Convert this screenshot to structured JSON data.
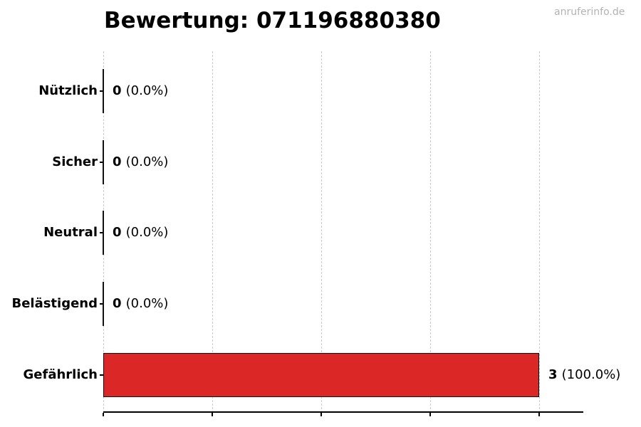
{
  "chart_data": {
    "type": "bar",
    "orientation": "horizontal",
    "title": "Bewertung: 071196880380",
    "watermark": "anruferinfo.de",
    "categories": [
      "Nützlich",
      "Sicher",
      "Neutral",
      "Belästigend",
      "Gefährlich"
    ],
    "values": [
      0,
      0,
      0,
      0,
      3
    ],
    "rows": [
      {
        "category": "Nützlich",
        "value": 0,
        "count": "0",
        "pct": "(0.0%)"
      },
      {
        "category": "Sicher",
        "value": 0,
        "count": "0",
        "pct": "(0.0%)"
      },
      {
        "category": "Neutral",
        "value": 0,
        "count": "0",
        "pct": "(0.0%)"
      },
      {
        "category": "Belästigend",
        "value": 0,
        "count": "0",
        "pct": "(0.0%)"
      },
      {
        "category": "Gefährlich",
        "value": 3,
        "count": "3",
        "pct": "(100.0%)"
      }
    ],
    "xlim": [
      0,
      3.3
    ],
    "ticks": [
      0,
      0.75,
      1.5,
      2.25,
      3
    ],
    "x_tick_labels": [],
    "grid": "vertical-dashed",
    "legend": "none",
    "colors": {
      "bar_fill": "#dc2727",
      "bar_edge": "#0d0d0d",
      "grid": "#cbcbcb",
      "axis": "#000000",
      "watermark": "#b3b3b3",
      "title": "#000000",
      "background": "#ffffff"
    }
  }
}
